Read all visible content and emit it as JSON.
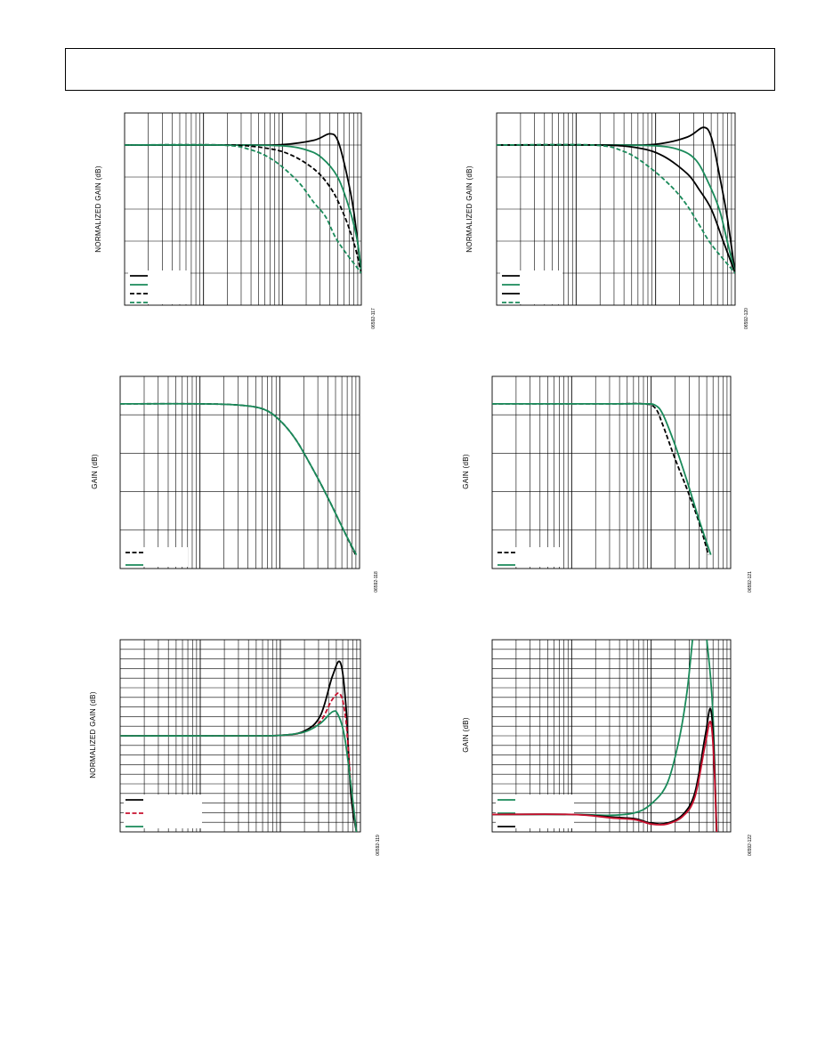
{
  "colors": {
    "black": "#000000",
    "green": "#1a8a5a",
    "red": "#c8102e",
    "grid": "#000000"
  },
  "chart_data": [
    {
      "id": "p1",
      "type": "line",
      "ylabel": "NORMALIZED GAIN (dB)",
      "figure_id": "06592-117",
      "grid": {
        "x_decades": 3,
        "y_divisions": 6
      },
      "series": [
        {
          "color": "black",
          "dash": false,
          "x": [
            0,
            1.5,
            2.0,
            2.4,
            2.6,
            2.7,
            2.8,
            2.9,
            3.0
          ],
          "y": [
            0,
            0,
            0.03,
            0.3,
            0.7,
            0.3,
            -1.5,
            -4,
            -8
          ]
        },
        {
          "color": "green",
          "dash": false,
          "x": [
            0,
            1.4,
            2.0,
            2.3,
            2.5,
            2.7,
            2.85,
            2.95,
            3.0
          ],
          "y": [
            0,
            0,
            -0.05,
            -0.3,
            -0.8,
            -2,
            -4,
            -6,
            -8
          ]
        },
        {
          "color": "black",
          "dash": true,
          "x": [
            0,
            1.3,
            1.8,
            2.1,
            2.4,
            2.6,
            2.75,
            2.9,
            3.0
          ],
          "y": [
            0,
            0,
            -0.2,
            -0.6,
            -1.5,
            -2.6,
            -4,
            -6,
            -8
          ]
        },
        {
          "color": "green",
          "dash": true,
          "x": [
            0,
            1.2,
            1.6,
            1.9,
            2.2,
            2.4,
            2.55,
            2.7,
            3.0
          ],
          "y": [
            0,
            0,
            -0.3,
            -1,
            -2.3,
            -3.6,
            -4.5,
            -6,
            -8
          ]
        }
      ]
    },
    {
      "id": "p2",
      "type": "line",
      "ylabel": "NORMALIZED GAIN (dB)",
      "figure_id": "06592-120",
      "grid": {
        "x_decades": 3,
        "y_divisions": 6
      },
      "series": [
        {
          "color": "black",
          "dash": false,
          "x": [
            0,
            1.5,
            2.0,
            2.4,
            2.6,
            2.7,
            2.8,
            2.9,
            3.0
          ],
          "y": [
            0,
            0,
            0.05,
            0.5,
            1.1,
            0.5,
            -1.8,
            -4.5,
            -8
          ]
        },
        {
          "color": "green",
          "dash": false,
          "x": [
            0,
            1.4,
            2.0,
            2.3,
            2.5,
            2.65,
            2.8,
            2.9,
            3.0
          ],
          "y": [
            0,
            0,
            -0.05,
            -0.3,
            -0.9,
            -2.2,
            -4,
            -6,
            -8
          ]
        },
        {
          "color": "black",
          "dash": false,
          "x": [
            0,
            1.3,
            1.8,
            2.1,
            2.4,
            2.55,
            2.7,
            2.85,
            3.0
          ],
          "y": [
            0,
            0,
            -0.2,
            -0.7,
            -1.8,
            -2.8,
            -4,
            -6,
            -8
          ]
        },
        {
          "color": "green",
          "dash": true,
          "x": [
            0,
            1.2,
            1.6,
            1.9,
            2.2,
            2.4,
            2.55,
            2.7,
            3.0
          ],
          "y": [
            0,
            0,
            -0.4,
            -1.3,
            -2.6,
            -3.8,
            -5,
            -6.2,
            -8
          ]
        }
      ]
    },
    {
      "id": "p3",
      "type": "line",
      "ylabel": "GAIN (dB)",
      "figure_id": "06592-118",
      "grid": {
        "x_decades": 3,
        "y_divisions": 5
      },
      "series": [
        {
          "color": "black",
          "dash": true,
          "x": [
            0,
            1.0,
            1.5,
            1.8,
            2.0,
            2.2,
            2.4,
            2.6,
            2.8,
            2.95
          ],
          "y": [
            0,
            0,
            -0.05,
            -0.2,
            -0.6,
            -1.3,
            -2.3,
            -3.4,
            -4.6,
            -5.5
          ]
        },
        {
          "color": "green",
          "dash": false,
          "x": [
            0,
            1.0,
            1.5,
            1.8,
            2.0,
            2.2,
            2.4,
            2.6,
            2.8,
            2.96
          ],
          "y": [
            0,
            0,
            -0.05,
            -0.2,
            -0.6,
            -1.3,
            -2.3,
            -3.4,
            -4.6,
            -5.5
          ]
        }
      ]
    },
    {
      "id": "p4",
      "type": "line",
      "ylabel": "GAIN (dB)",
      "figure_id": "06592-121",
      "grid": {
        "x_decades": 3,
        "y_divisions": 5
      },
      "series": [
        {
          "color": "black",
          "dash": true,
          "x": [
            0,
            1.5,
            1.9,
            2.05,
            2.15,
            2.3,
            2.45,
            2.6,
            2.72
          ],
          "y": [
            0,
            0,
            0,
            -0.15,
            -0.8,
            -2,
            -3.1,
            -4.3,
            -5.5
          ]
        },
        {
          "color": "green",
          "dash": false,
          "x": [
            0,
            1.5,
            1.9,
            2.05,
            2.15,
            2.3,
            2.45,
            2.6,
            2.75
          ],
          "y": [
            0,
            0,
            0,
            -0.05,
            -0.4,
            -1.5,
            -2.8,
            -4.2,
            -5.5
          ]
        }
      ]
    },
    {
      "id": "p5",
      "type": "line",
      "ylabel": "NORMALIZED GAIN (dB)",
      "figure_id": "06592-119",
      "grid": {
        "x_decades": 3,
        "y_divisions": 20
      },
      "series": [
        {
          "color": "black",
          "dash": false,
          "x": [
            0,
            1.5,
            2.0,
            2.3,
            2.5,
            2.65,
            2.75,
            2.82,
            2.88,
            2.95
          ],
          "y": [
            0,
            0,
            0.05,
            0.5,
            2.1,
            6.2,
            7.6,
            3,
            -6,
            -10
          ]
        },
        {
          "color": "red",
          "dash": true,
          "x": [
            0,
            1.5,
            2.0,
            2.3,
            2.5,
            2.65,
            2.75,
            2.82,
            2.88,
            2.95
          ],
          "y": [
            0,
            0,
            0.05,
            0.4,
            1.5,
            3.8,
            4.3,
            1.5,
            -5,
            -10
          ]
        },
        {
          "color": "green",
          "dash": false,
          "x": [
            0,
            1.5,
            2.0,
            2.3,
            2.5,
            2.65,
            2.72,
            2.8,
            2.88,
            2.95
          ],
          "y": [
            0,
            0,
            0.05,
            0.4,
            1.3,
            2.5,
            2.2,
            0,
            -5,
            -10
          ]
        }
      ]
    },
    {
      "id": "p6",
      "type": "line",
      "ylabel": "GAIN (dB)",
      "figure_id": "06592-122",
      "grid": {
        "x_decades": 3,
        "y_divisions": 20
      },
      "series": [
        {
          "color": "green",
          "dash": false,
          "x": [
            0,
            1.0,
            1.5,
            1.8,
            2.0,
            2.2,
            2.35,
            2.45,
            2.52
          ],
          "y": [
            0,
            0,
            -0.1,
            0.2,
            1.2,
            3.5,
            8.5,
            14,
            20
          ]
        },
        {
          "color": "green",
          "dash": false,
          "x": [
            2.7,
            2.78,
            2.84
          ],
          "y": [
            20,
            11,
            -10
          ]
        },
        {
          "color": "black",
          "dash": false,
          "x": [
            0,
            1.0,
            1.5,
            1.8,
            2.0,
            2.2,
            2.4,
            2.55,
            2.68,
            2.75,
            2.8,
            2.85
          ],
          "y": [
            0,
            0,
            -0.3,
            -0.5,
            -1,
            -1,
            0,
            2.5,
            9,
            12,
            5,
            -10
          ]
        },
        {
          "color": "red",
          "dash": false,
          "x": [
            0,
            1.0,
            1.5,
            1.8,
            2.0,
            2.2,
            2.4,
            2.55,
            2.68,
            2.75,
            2.8,
            2.85
          ],
          "y": [
            0,
            0,
            -0.4,
            -0.6,
            -1.1,
            -1.1,
            -0.2,
            2,
            8,
            10.5,
            4,
            -10
          ]
        }
      ]
    }
  ]
}
